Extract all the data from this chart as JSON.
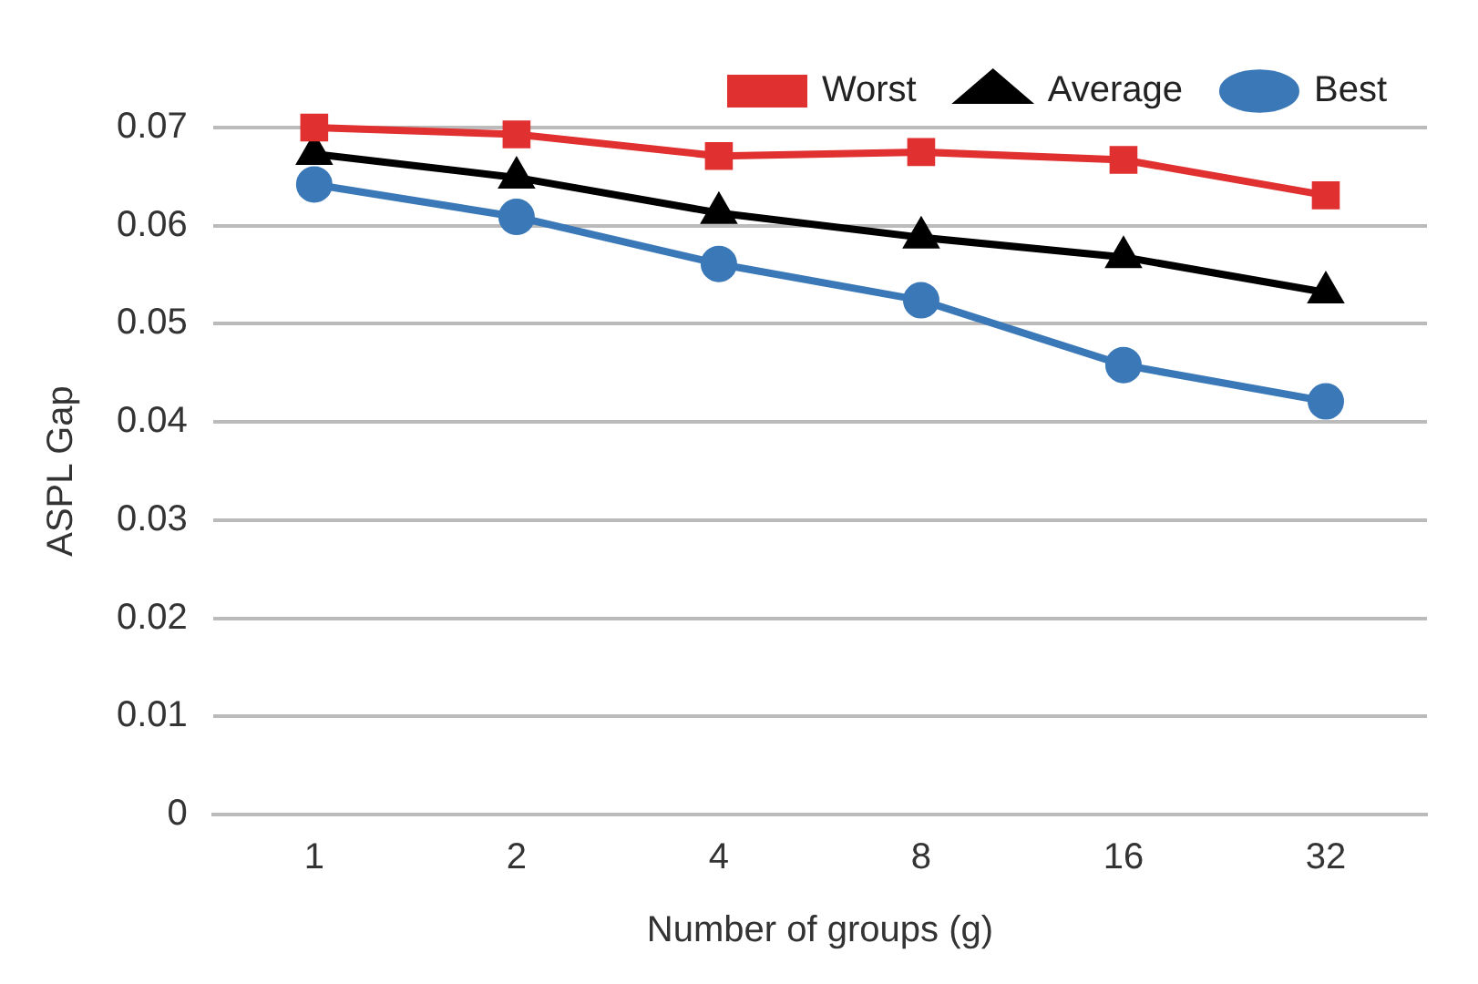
{
  "chart_data": {
    "type": "line",
    "xlabel": "Number of groups (g)",
    "ylabel": "ASPL Gap",
    "categories": [
      "1",
      "2",
      "4",
      "8",
      "16",
      "32"
    ],
    "series": [
      {
        "name": "Worst",
        "color": "#e03030",
        "marker": "square",
        "values": [
          0.07,
          0.0693,
          0.0671,
          0.0675,
          0.0667,
          0.0631
        ]
      },
      {
        "name": "Average",
        "color": "#000000",
        "marker": "triangle",
        "values": [
          0.0673,
          0.0649,
          0.0613,
          0.0588,
          0.0568,
          0.0532
        ]
      },
      {
        "name": "Best",
        "color": "#3a78b8",
        "marker": "circle",
        "values": [
          0.0642,
          0.0609,
          0.0561,
          0.0524,
          0.0458,
          0.0421
        ]
      }
    ],
    "ylim": [
      0,
      0.07
    ],
    "yticks": [
      0,
      0.01,
      0.02,
      0.03,
      0.04,
      0.05,
      0.06,
      0.07
    ],
    "grid": "y",
    "legend": "top right",
    "line_style": "solid"
  }
}
